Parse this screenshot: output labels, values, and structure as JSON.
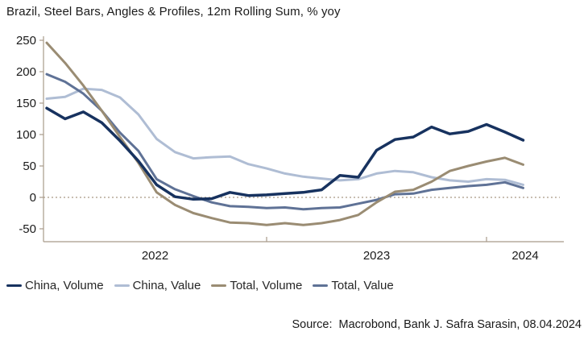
{
  "header": {
    "title": "Brazil, Steel Bars, Angles & Profiles, 12m Rolling Sum, % yoy"
  },
  "footer": {
    "source_text": "Source:  Macrobond, Bank J. Safra Sarasin, 08.04.2024"
  },
  "colors": {
    "axis": "#A89B8A",
    "zero_line": "#B7AA99",
    "text": "#1a1a1a"
  },
  "chart_data": {
    "type": "line",
    "title": "Brazil, Steel Bars, Angles & Profiles, 12m Rolling Sum, % yoy",
    "xlabel": "",
    "ylabel": "% yoy",
    "ylim": [
      -65,
      262
    ],
    "grid": false,
    "zero_line": true,
    "legend_position": "bottom-left",
    "y_ticks": [
      250,
      200,
      150,
      100,
      50,
      0,
      -50
    ],
    "x_year_labels": [
      "2022",
      "2023",
      "2024"
    ],
    "months": [
      "2022-01",
      "2022-02",
      "2022-03",
      "2022-04",
      "2022-05",
      "2022-06",
      "2022-07",
      "2022-08",
      "2022-09",
      "2022-10",
      "2022-11",
      "2022-12",
      "2023-01",
      "2023-02",
      "2023-03",
      "2023-04",
      "2023-05",
      "2023-06",
      "2023-07",
      "2023-08",
      "2023-09",
      "2023-10",
      "2023-11",
      "2023-12",
      "2024-01",
      "2024-02",
      "2024-03"
    ],
    "series": [
      {
        "name": "China, Volume",
        "color": "#17325F",
        "width": 3.5,
        "values": [
          142,
          125,
          136,
          119,
          90,
          58,
          20,
          1,
          -3,
          -2,
          8,
          3,
          4,
          6,
          8,
          12,
          35,
          32,
          75,
          92,
          96,
          112,
          101,
          105,
          116,
          104,
          91
        ]
      },
      {
        "name": "China, Value",
        "color": "#AFBDD4",
        "width": 3,
        "values": [
          157,
          160,
          173,
          171,
          159,
          132,
          93,
          72,
          62,
          64,
          65,
          53,
          46,
          38,
          33,
          30,
          27,
          29,
          38,
          42,
          40,
          32,
          27,
          25,
          29,
          28,
          20
        ]
      },
      {
        "name": "Total, Volume",
        "color": "#9A8C73",
        "width": 3,
        "values": [
          246,
          214,
          178,
          138,
          96,
          55,
          8,
          -12,
          -25,
          -33,
          -40,
          -41,
          -44,
          -41,
          -44,
          -41,
          -36,
          -28,
          -8,
          9,
          12,
          25,
          42,
          50,
          57,
          63,
          52
        ]
      },
      {
        "name": "Total, Value",
        "color": "#5F7296",
        "width": 3,
        "values": [
          196,
          184,
          165,
          138,
          103,
          74,
          29,
          13,
          2,
          -8,
          -14,
          -15,
          -17,
          -16,
          -19,
          -17,
          -16,
          -10,
          -4,
          5,
          6,
          12,
          15,
          18,
          20,
          24,
          15
        ]
      }
    ]
  }
}
